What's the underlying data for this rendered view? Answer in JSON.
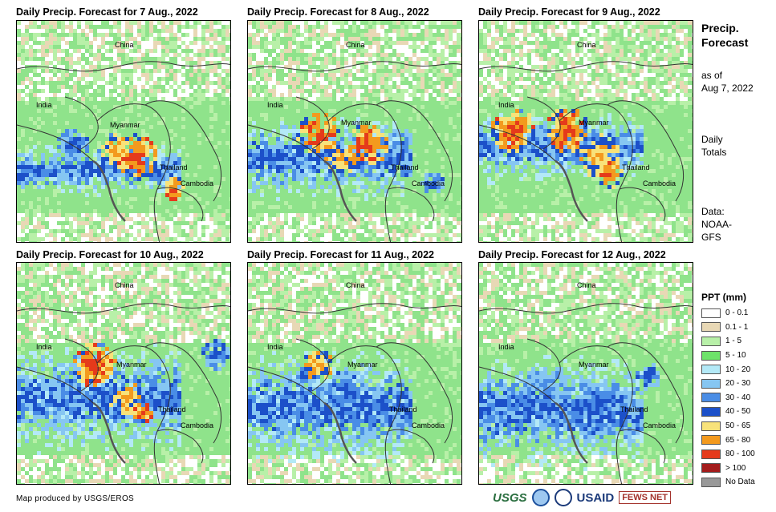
{
  "panels": [
    {
      "title": "Daily Precip. Forecast for 7 Aug., 2022",
      "seed": 7
    },
    {
      "title": "Daily Precip. Forecast for 8 Aug., 2022",
      "seed": 8
    },
    {
      "title": "Daily Precip. Forecast for 9 Aug., 2022",
      "seed": 9
    },
    {
      "title": "Daily Precip. Forecast for 10 Aug., 2022",
      "seed": 10
    },
    {
      "title": "Daily Precip. Forecast for 11 Aug., 2022",
      "seed": 11
    },
    {
      "title": "Daily Precip. Forecast for 12 Aug., 2022",
      "seed": 12
    }
  ],
  "map_labels": {
    "china": "China",
    "india": "India",
    "myanmar": "Myanmar",
    "thailand": "Thailand",
    "cambodia": "Cambodia"
  },
  "sidebar": {
    "title_line1": "Precip.",
    "title_line2": "Forecast",
    "asof_line1": "as of",
    "asof_line2": "Aug 7, 2022",
    "totals_line1": "Daily",
    "totals_line2": "Totals",
    "data_line1": "Data:",
    "data_line2": "NOAA-",
    "data_line3": "GFS"
  },
  "legend": {
    "title": "PPT (mm)",
    "items": [
      {
        "label": "0 - 0.1",
        "color": "#ffffff"
      },
      {
        "label": "0.1 - 1",
        "color": "#e8d8b5"
      },
      {
        "label": "1 - 5",
        "color": "#b8f0a8"
      },
      {
        "label": "5 - 10",
        "color": "#6ee36a"
      },
      {
        "label": "10 - 20",
        "color": "#b3e9f7"
      },
      {
        "label": "20 - 30",
        "color": "#86c6f2"
      },
      {
        "label": "30 - 40",
        "color": "#4a8de6"
      },
      {
        "label": "40 - 50",
        "color": "#1c50c9"
      },
      {
        "label": "50 - 65",
        "color": "#f8e27a"
      },
      {
        "label": "65 - 80",
        "color": "#f39a1e"
      },
      {
        "label": "80 - 100",
        "color": "#e53a1b"
      },
      {
        "label": "> 100",
        "color": "#a31c1c"
      },
      {
        "label": "No Data",
        "color": "#999999"
      }
    ]
  },
  "footer": {
    "credit": "Map produced by USGS/EROS"
  },
  "logos": {
    "usgs": "USGS",
    "usaid": "USAID",
    "fews": "FEWS NET"
  }
}
